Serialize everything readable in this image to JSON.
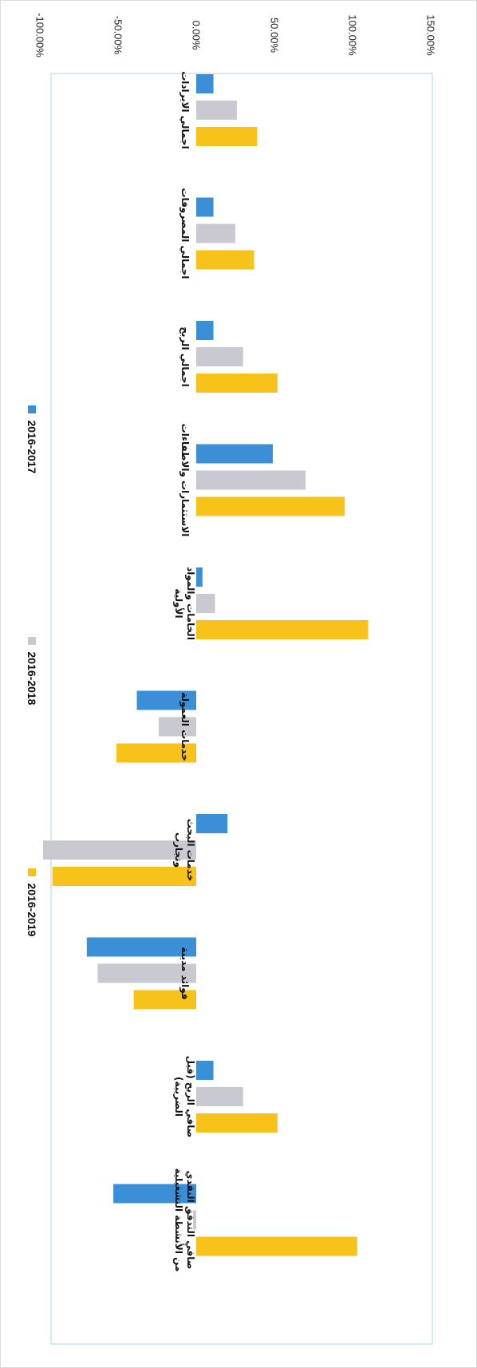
{
  "chart_data": {
    "type": "bar",
    "orientation": "horizontal",
    "title": "",
    "xlabel": "",
    "ylabel": "",
    "xlim": [
      -1.0,
      1.5
    ],
    "x_ticks": [
      {
        "value": 1.5,
        "label": "150.00%"
      },
      {
        "value": 1.0,
        "label": "100.00%"
      },
      {
        "value": 0.5,
        "label": "50.00%"
      },
      {
        "value": 0.0,
        "label": "0.00%"
      },
      {
        "value": -0.5,
        "label": "-50.00%"
      },
      {
        "value": -1.0,
        "label": "-100.00%"
      }
    ],
    "grid": false,
    "legend_position": "bottom",
    "categories": [
      [
        "اجمالي الايرادات"
      ],
      [
        "اجمالي المصروفات"
      ],
      [
        "اجمالي الربح"
      ],
      [
        "الاستثمارات والاطفاءات"
      ],
      [
        "الخامات والمواد",
        "الأولية"
      ],
      [
        "خدمات العمولة"
      ],
      [
        "خدمات البحث",
        "وتجارب"
      ],
      [
        "فوائد مدينة"
      ],
      [
        "صافي الربح (قبل",
        "الضريبة)"
      ],
      [
        "صافي التدفق النقدي",
        "من الأنشطة التشغيلية"
      ]
    ],
    "series": [
      {
        "name": "2016-2017",
        "color": "#3a8fd6",
        "values": [
          0.11,
          0.11,
          0.11,
          0.49,
          0.04,
          -0.38,
          0.2,
          -0.7,
          0.11,
          -0.53
        ]
      },
      {
        "name": "2016-2018",
        "color": "#c9c9d1",
        "values": [
          0.26,
          0.25,
          0.3,
          0.7,
          0.12,
          -0.24,
          -0.98,
          -0.63,
          0.3,
          -0.02
        ]
      },
      {
        "name": "2016-2019",
        "color": "#f7c31a",
        "values": [
          0.39,
          0.37,
          0.52,
          0.95,
          1.1,
          -0.51,
          -0.92,
          -0.4,
          0.52,
          1.03
        ]
      }
    ],
    "colors": {
      "plot_border": "#a8d6e8"
    }
  }
}
